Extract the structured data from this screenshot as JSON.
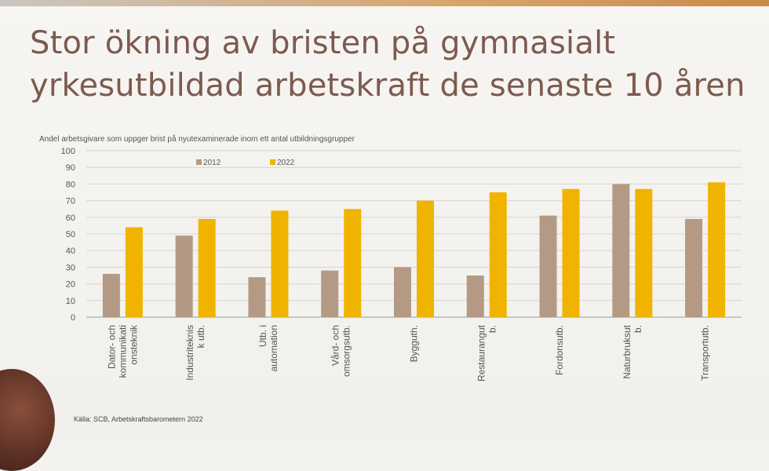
{
  "slide": {
    "title_line1": "Stor ökning av bristen på gymnasialt",
    "title_line2": "yrkesutbildad arbetskraft de senaste 10 åren",
    "source": "Källa: SCB, Arbetskraftsbarometern 2022"
  },
  "chart_data": {
    "type": "bar",
    "title": "Andel arbetsgivare som uppger brist på nyutexaminerade inom ett antal utbildningsgrupper",
    "xlabel": "",
    "ylabel": "",
    "ylim": [
      0,
      100
    ],
    "yticks": [
      "0",
      "10",
      "20",
      "30",
      "40",
      "50",
      "60",
      "70",
      "80",
      "90",
      "100"
    ],
    "grid": true,
    "legend_position": "top-left",
    "categories": [
      [
        "Dator- och",
        "kommunikati",
        "onsteknik"
      ],
      [
        "Industriteknis",
        "k utb."
      ],
      [
        "Utb. i",
        "automation"
      ],
      [
        "Vård- och",
        "omsorgsutb."
      ],
      [
        "Bygguth."
      ],
      [
        "Restaurangut",
        "b."
      ],
      [
        "Fordonsutb."
      ],
      [
        "Naturbruksut",
        "b."
      ],
      [
        "Transportutb."
      ]
    ],
    "series": [
      {
        "name": "2012",
        "color": "#b49a85",
        "values": [
          26,
          49,
          24,
          28,
          30,
          25,
          61,
          80,
          59
        ]
      },
      {
        "name": "2022",
        "color": "#f0b400",
        "values": [
          54,
          59,
          64,
          65,
          70,
          75,
          77,
          77,
          81
        ]
      }
    ]
  }
}
